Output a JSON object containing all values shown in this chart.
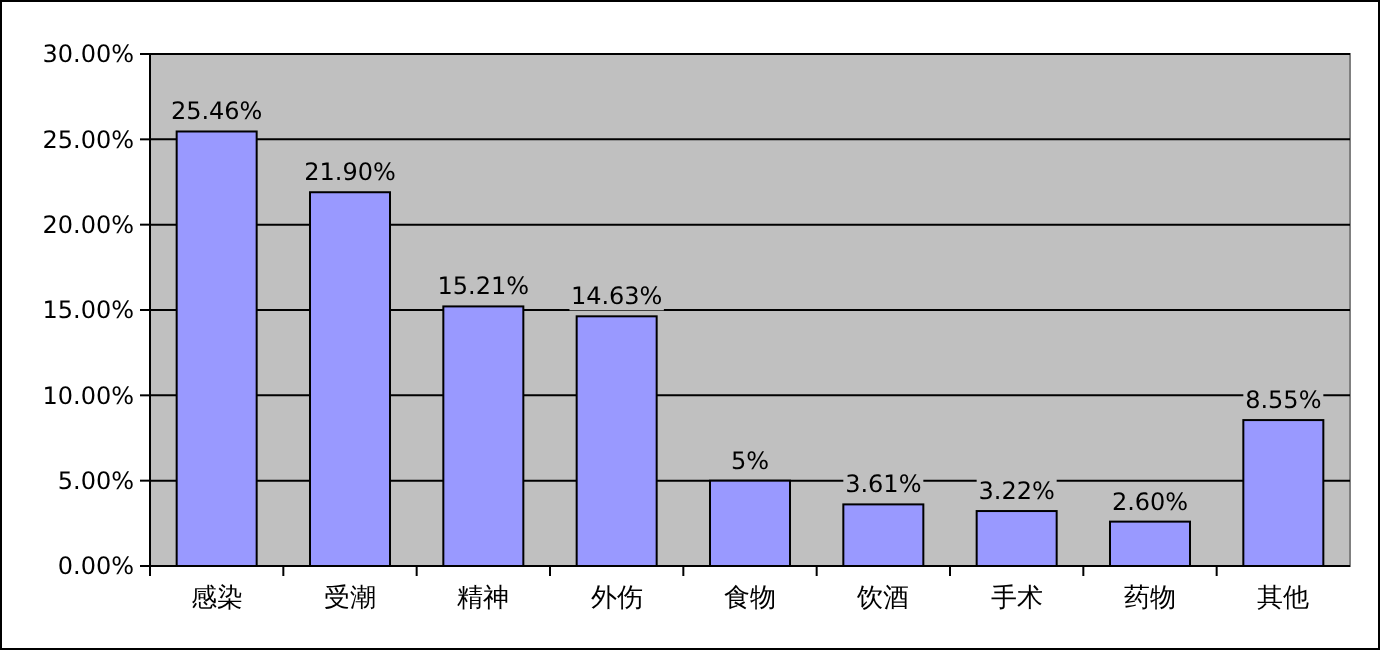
{
  "chart_data": {
    "type": "bar",
    "categories": [
      "感染",
      "受潮",
      "精神",
      "外伤",
      "食物",
      "饮酒",
      "手术",
      "药物",
      "其他"
    ],
    "values": [
      25.46,
      21.9,
      15.21,
      14.63,
      5,
      3.61,
      3.22,
      2.6,
      8.55
    ],
    "value_labels": [
      "25.46%",
      "21.90%",
      "15.21%",
      "14.63%",
      "5%",
      "3.61%",
      "3.22%",
      "2.60%",
      "8.55%"
    ],
    "color": "#9999ff",
    "ylim": [
      0,
      30
    ],
    "yticks": [
      {
        "value": 0,
        "label": "0.00%"
      },
      {
        "value": 5,
        "label": "5.00%"
      },
      {
        "value": 10,
        "label": "10.00%"
      },
      {
        "value": 15,
        "label": "15.00%"
      },
      {
        "value": 20,
        "label": "20.00%"
      },
      {
        "value": 25,
        "label": "25.00%"
      },
      {
        "value": 30,
        "label": "30.00%"
      }
    ],
    "grid": "y"
  }
}
